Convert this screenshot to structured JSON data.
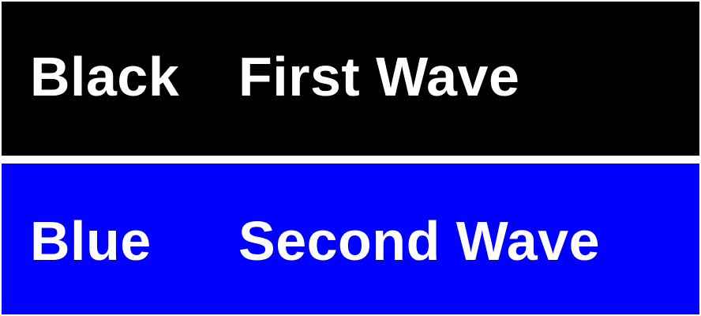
{
  "colors": {
    "background": "#ffffff",
    "text": "#ffffff"
  },
  "rows": [
    {
      "color_name": "Black",
      "wave": "First Wave",
      "fill": "#000000"
    },
    {
      "color_name": "Blue",
      "wave": "Second Wave",
      "fill": "#0000ff"
    }
  ]
}
